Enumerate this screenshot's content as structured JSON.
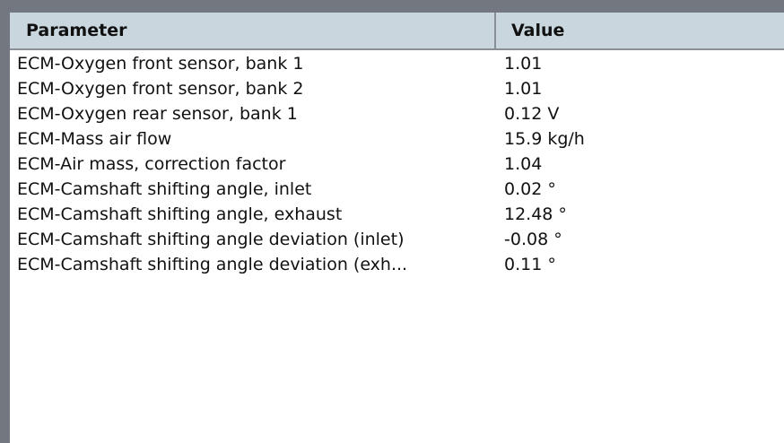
{
  "table": {
    "columns": [
      "Parameter",
      "Value"
    ],
    "rows": [
      {
        "parameter": "ECM-Oxygen front sensor, bank 1",
        "value": "1.01"
      },
      {
        "parameter": "ECM-Oxygen front sensor, bank 2",
        "value": "1.01"
      },
      {
        "parameter": "ECM-Oxygen rear sensor, bank 1",
        "value": "0.12 V"
      },
      {
        "parameter": "ECM-Mass air flow",
        "value": "15.9 kg/h"
      },
      {
        "parameter": "ECM-Air mass, correction factor",
        "value": "1.04"
      },
      {
        "parameter": "ECM-Camshaft shifting angle, inlet",
        "value": "0.02 °"
      },
      {
        "parameter": "ECM-Camshaft shifting angle, exhaust",
        "value": "12.48 °"
      },
      {
        "parameter": "ECM-Camshaft shifting angle deviation (inlet)",
        "value": "-0.08 °"
      },
      {
        "parameter": "ECM-Camshaft shifting angle deviation (exh...",
        "value": "0.11 °"
      }
    ]
  }
}
